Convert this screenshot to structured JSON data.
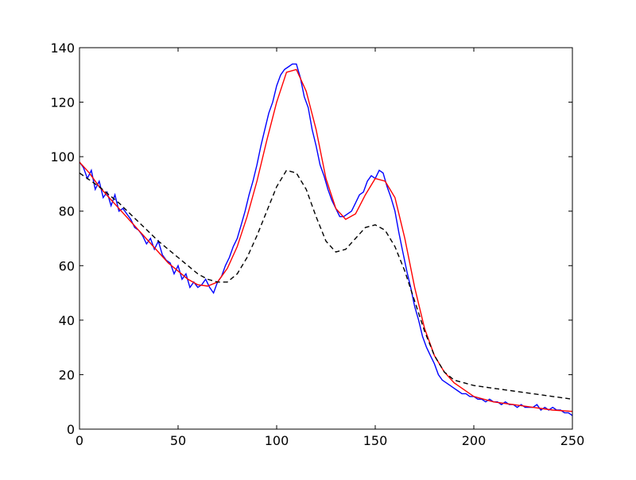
{
  "chart_data": {
    "type": "line",
    "title": "",
    "xlabel": "",
    "ylabel": "",
    "xlim": [
      0,
      250
    ],
    "ylim": [
      0,
      140
    ],
    "xticks": [
      0,
      50,
      100,
      150,
      200,
      250
    ],
    "yticks": [
      0,
      20,
      40,
      60,
      80,
      100,
      120,
      140
    ],
    "grid": false,
    "legend": "none",
    "series": [
      {
        "color": "#0000ff",
        "style": "solid",
        "x": [
          0,
          2,
          4,
          6,
          8,
          10,
          12,
          14,
          16,
          18,
          20,
          22,
          24,
          26,
          28,
          30,
          32,
          34,
          36,
          38,
          40,
          42,
          44,
          46,
          48,
          50,
          52,
          54,
          56,
          58,
          60,
          62,
          64,
          66,
          68,
          70,
          72,
          74,
          76,
          78,
          80,
          82,
          84,
          86,
          88,
          90,
          92,
          94,
          96,
          98,
          100,
          102,
          104,
          106,
          108,
          110,
          112,
          114,
          116,
          118,
          120,
          122,
          124,
          126,
          128,
          130,
          132,
          134,
          136,
          138,
          140,
          142,
          144,
          146,
          148,
          150,
          152,
          154,
          156,
          158,
          160,
          162,
          164,
          166,
          168,
          170,
          172,
          174,
          176,
          178,
          180,
          182,
          184,
          186,
          188,
          190,
          192,
          194,
          196,
          198,
          200,
          202,
          204,
          206,
          208,
          210,
          212,
          214,
          216,
          218,
          220,
          222,
          224,
          226,
          228,
          230,
          232,
          234,
          236,
          238,
          240,
          242,
          244,
          246,
          248,
          250
        ],
        "y": [
          98,
          96,
          92,
          95,
          88,
          91,
          85,
          87,
          82,
          86,
          80,
          81,
          79,
          77,
          74,
          73,
          71,
          68,
          70,
          66,
          69,
          64,
          62,
          61,
          57,
          60,
          55,
          57,
          52,
          54,
          52,
          53,
          55,
          52,
          50,
          54,
          56,
          60,
          63,
          67,
          70,
          75,
          80,
          86,
          91,
          97,
          104,
          110,
          116,
          120,
          126,
          130,
          132,
          133,
          134,
          134,
          129,
          122,
          118,
          110,
          104,
          97,
          93,
          88,
          84,
          81,
          78,
          78,
          79,
          80,
          83,
          86,
          87,
          91,
          93,
          92,
          95,
          94,
          89,
          85,
          80,
          72,
          65,
          58,
          52,
          45,
          40,
          34,
          30,
          27,
          24,
          20,
          18,
          17,
          16,
          15,
          14,
          13,
          13,
          12,
          12,
          11,
          11,
          10,
          11,
          10,
          10,
          9,
          10,
          9,
          9,
          8,
          9,
          8,
          8,
          8,
          9,
          7,
          8,
          7,
          8,
          7,
          7,
          6,
          6,
          5
        ]
      },
      {
        "color": "#ff0000",
        "style": "solid",
        "x": [
          0,
          5,
          10,
          15,
          20,
          25,
          30,
          35,
          40,
          45,
          50,
          55,
          60,
          65,
          70,
          75,
          80,
          85,
          90,
          95,
          100,
          105,
          110,
          115,
          120,
          125,
          130,
          135,
          140,
          145,
          150,
          155,
          160,
          165,
          170,
          175,
          180,
          185,
          190,
          200,
          210,
          220,
          230,
          240,
          250
        ],
        "y": [
          98,
          94,
          89,
          85,
          81,
          77,
          73,
          69,
          65,
          61,
          58,
          55,
          53,
          52.5,
          54,
          59,
          67,
          78,
          91,
          106,
          120,
          131,
          132,
          124,
          110,
          92,
          81,
          77,
          79,
          86,
          92,
          91,
          85,
          70,
          52,
          37,
          27,
          21,
          17,
          12,
          10,
          9,
          8,
          7,
          6.5
        ]
      },
      {
        "color": "#000000",
        "style": "dashed",
        "x": [
          0,
          10,
          20,
          30,
          40,
          50,
          60,
          65,
          70,
          75,
          80,
          85,
          90,
          95,
          100,
          105,
          110,
          115,
          120,
          125,
          130,
          135,
          140,
          145,
          150,
          155,
          160,
          165,
          170,
          175,
          180,
          185,
          190,
          200,
          210,
          220,
          230,
          240,
          250
        ],
        "y": [
          94,
          89,
          83,
          76,
          69,
          63,
          57,
          55,
          54,
          54,
          57,
          63,
          71,
          80,
          89,
          95,
          94,
          88,
          78,
          69,
          65,
          66,
          70,
          74,
          75,
          73,
          67,
          58,
          47,
          36,
          27,
          21,
          18,
          16,
          15,
          14,
          13,
          12,
          11
        ]
      }
    ]
  }
}
